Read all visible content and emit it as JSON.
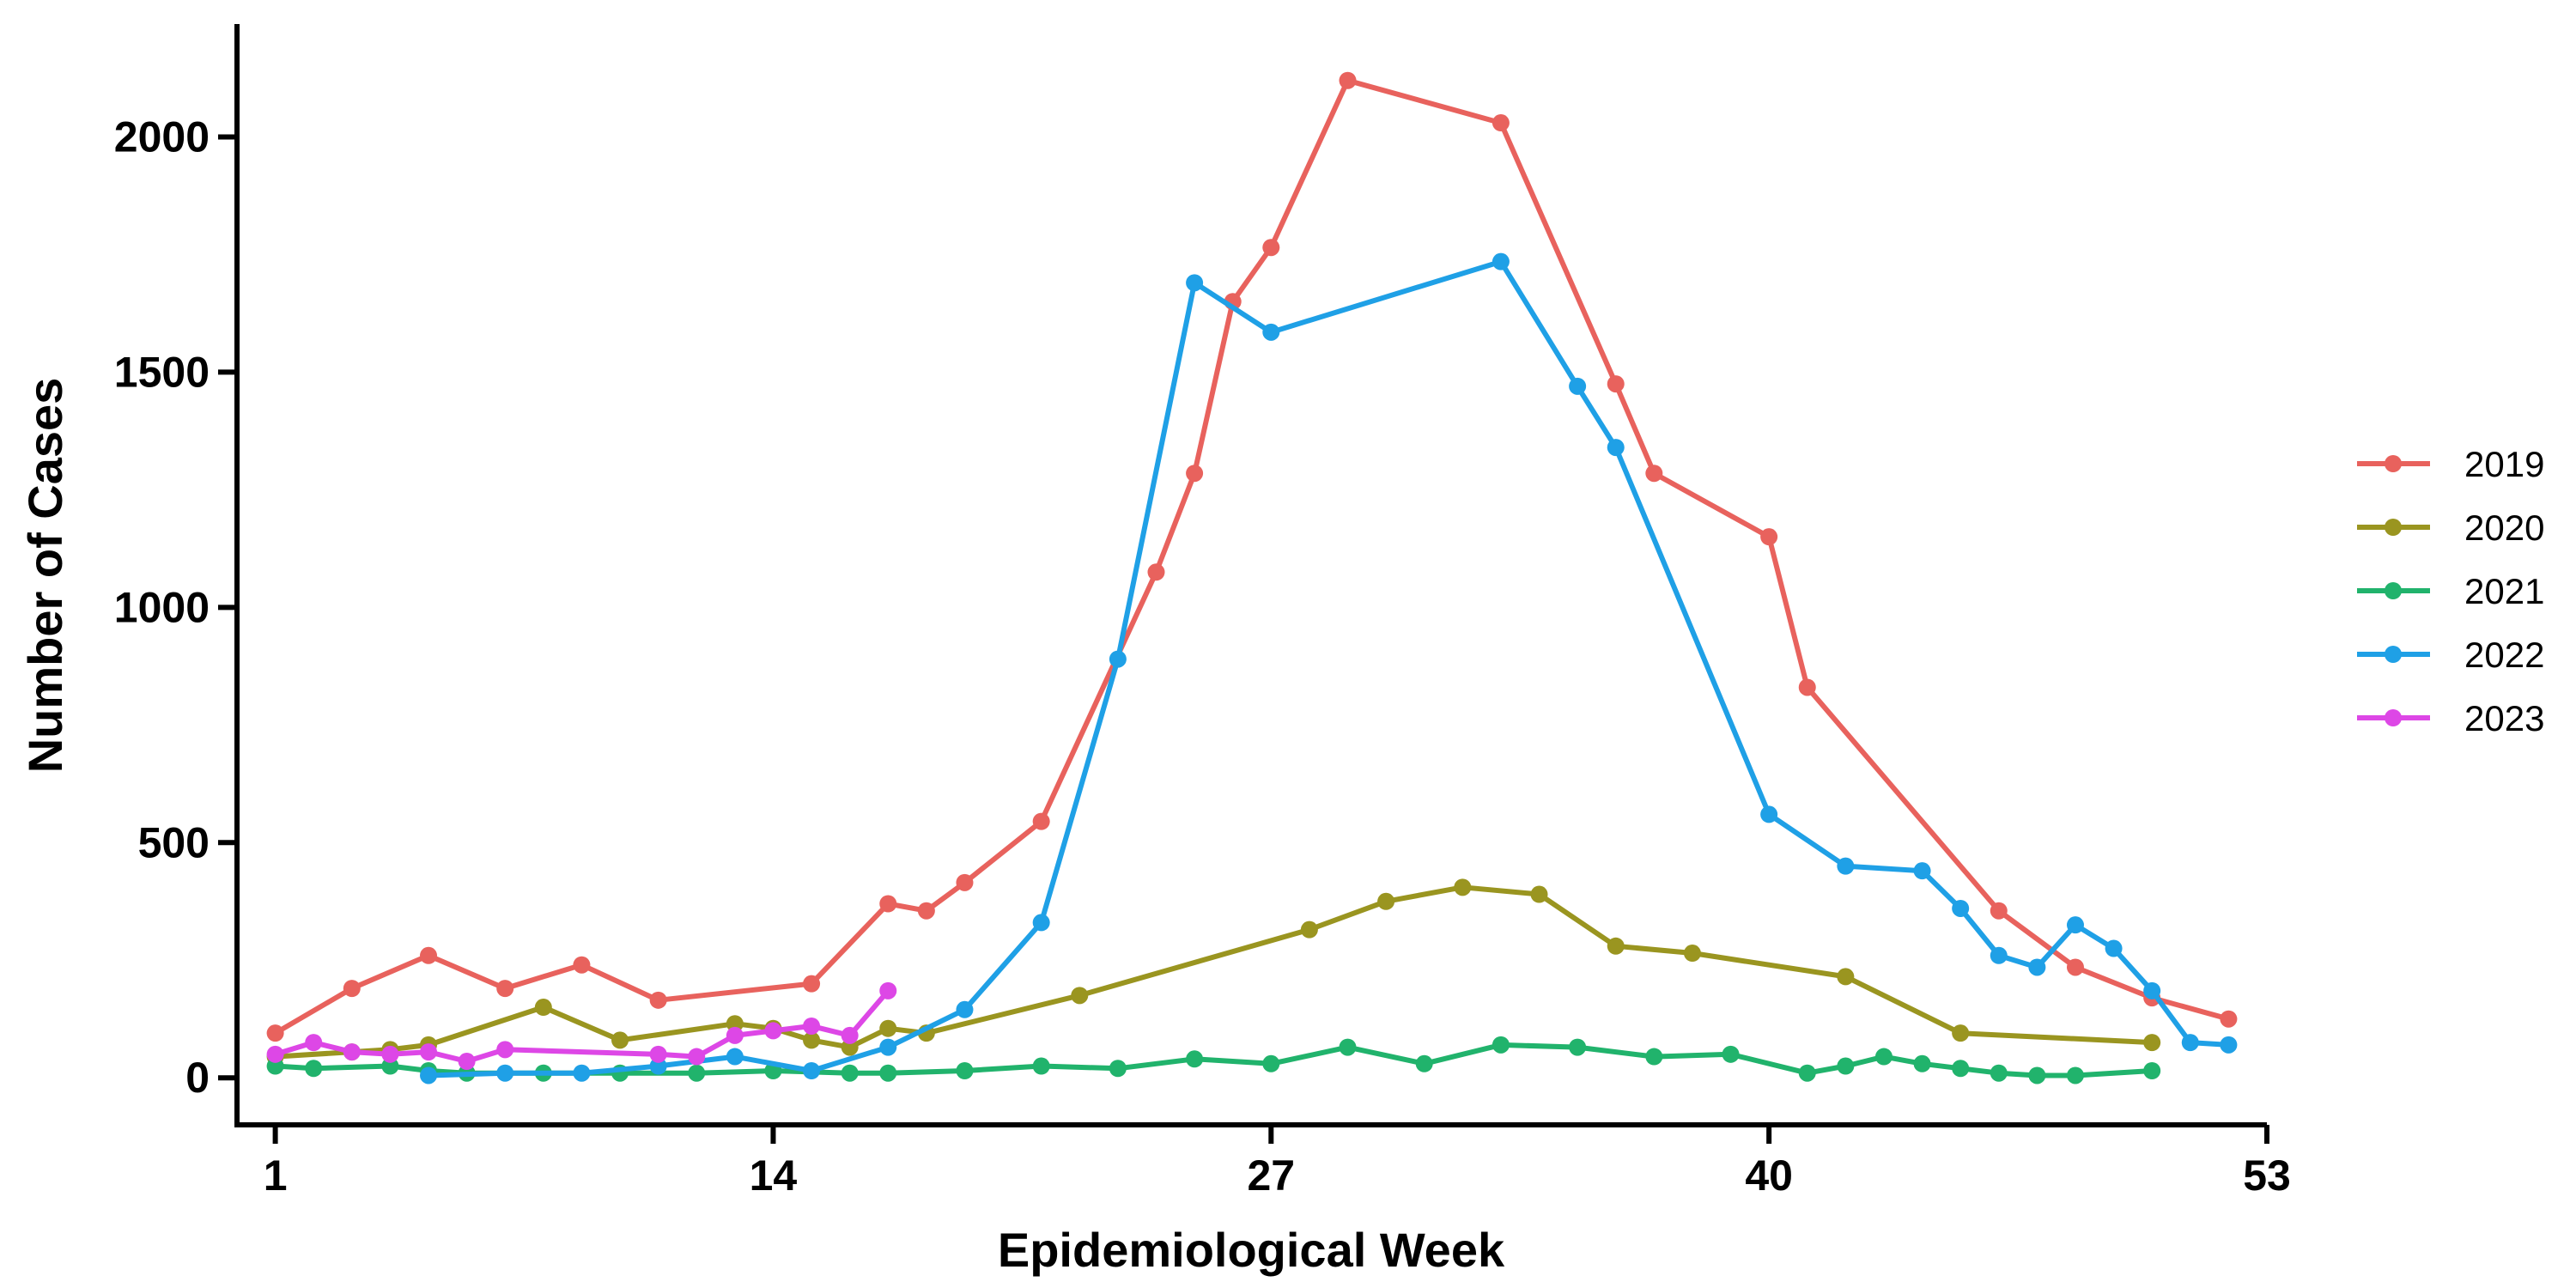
{
  "chart_data": {
    "type": "line",
    "title": "",
    "xlabel": "Epidemiological Week",
    "ylabel": "Number of Cases",
    "xlim": [
      0,
      53
    ],
    "ylim": [
      -100,
      2240
    ],
    "xticks": [
      1,
      14,
      27,
      40,
      53
    ],
    "yticks": [
      0,
      500,
      1000,
      1500,
      2000
    ],
    "grid": false,
    "legend_position": "right",
    "series": [
      {
        "name": "2019",
        "color": "#E8625D",
        "x": [
          1,
          3,
          5,
          7,
          9,
          11,
          15,
          17,
          18,
          19,
          21,
          24,
          25,
          26,
          27,
          29,
          33,
          36,
          37,
          40,
          41,
          46,
          48,
          50,
          52
        ],
        "y": [
          95,
          190,
          260,
          190,
          240,
          165,
          200,
          370,
          355,
          415,
          545,
          1075,
          1285,
          1650,
          1765,
          2120,
          2030,
          1475,
          1285,
          1150,
          830,
          355,
          235,
          170,
          125
        ]
      },
      {
        "name": "2020",
        "color": "#9A9520",
        "x": [
          1,
          3,
          4,
          5,
          8,
          10,
          13,
          14,
          15,
          16,
          17,
          18,
          22,
          28,
          30,
          32,
          34,
          36,
          38,
          42,
          45,
          50
        ],
        "y": [
          45,
          55,
          60,
          70,
          150,
          80,
          115,
          105,
          80,
          65,
          105,
          95,
          175,
          315,
          375,
          405,
          390,
          280,
          265,
          215,
          95,
          75
        ]
      },
      {
        "name": "2021",
        "color": "#21B36C",
        "x": [
          1,
          2,
          4,
          5,
          6,
          8,
          10,
          12,
          14,
          16,
          17,
          19,
          21,
          23,
          25,
          27,
          29,
          31,
          33,
          35,
          37,
          39,
          41,
          42,
          43,
          44,
          45,
          46,
          47,
          48,
          50
        ],
        "y": [
          25,
          20,
          25,
          15,
          10,
          10,
          10,
          10,
          15,
          10,
          10,
          15,
          25,
          20,
          40,
          30,
          65,
          30,
          70,
          65,
          45,
          50,
          10,
          25,
          45,
          30,
          20,
          10,
          5,
          5,
          15
        ]
      },
      {
        "name": "2022",
        "color": "#1FA0E6",
        "x": [
          5,
          7,
          9,
          11,
          13,
          15,
          17,
          19,
          21,
          23,
          25,
          27,
          33,
          35,
          36,
          40,
          42,
          44,
          45,
          46,
          47,
          48,
          49,
          50,
          51,
          52
        ],
        "y": [
          5,
          10,
          10,
          25,
          45,
          15,
          65,
          145,
          330,
          890,
          1690,
          1585,
          1735,
          1470,
          1340,
          560,
          450,
          440,
          360,
          260,
          235,
          325,
          275,
          185,
          75,
          70
        ]
      },
      {
        "name": "2023",
        "color": "#DD47E6",
        "x": [
          1,
          2,
          3,
          4,
          5,
          6,
          7,
          11,
          12,
          13,
          14,
          15,
          16,
          17
        ],
        "y": [
          50,
          75,
          55,
          50,
          55,
          35,
          60,
          50,
          45,
          90,
          100,
          110,
          90,
          185
        ]
      }
    ]
  }
}
